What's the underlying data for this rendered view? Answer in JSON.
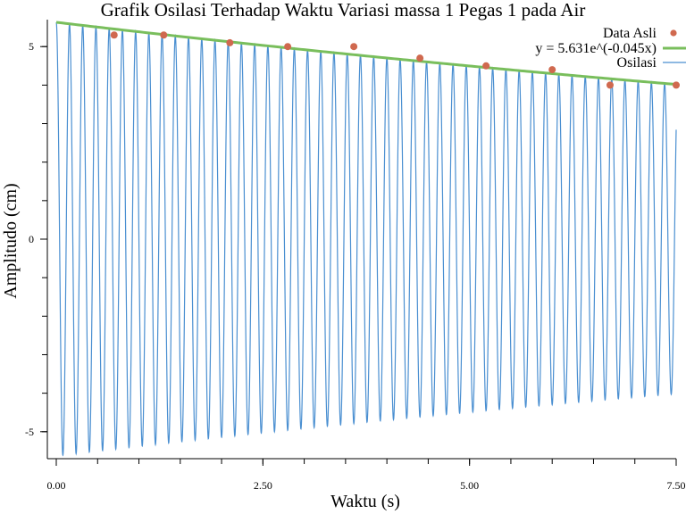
{
  "chart_data": {
    "type": "line",
    "title": "Grafik Osilasi Terhadap Waktu Variasi massa 1 Pegas 1 pada Air",
    "xlabel": "Waktu (s)",
    "ylabel": "Amplitudo (cm)",
    "xlim": [
      0,
      7.5
    ],
    "ylim": [
      -5.7,
      5.7
    ],
    "xticks": [
      {
        "value": 0,
        "label": "0.00"
      },
      {
        "value": 2.5,
        "label": "2.50"
      },
      {
        "value": 5.0,
        "label": "5.00"
      },
      {
        "value": 7.5,
        "label": "7.50"
      }
    ],
    "yticks": [
      {
        "value": 5,
        "label": "5"
      },
      {
        "value": 0,
        "label": "0"
      },
      {
        "value": -5,
        "label": "-5"
      }
    ],
    "x_minor_step": 0.5,
    "y_minor_step": 1,
    "grid": false,
    "legend_position": "top-right",
    "series": [
      {
        "name": "Data Asli",
        "kind": "scatter",
        "color": "#d0694f",
        "x": [
          0.7,
          1.3,
          2.1,
          2.8,
          3.6,
          4.4,
          5.2,
          6.0,
          6.7,
          7.5
        ],
        "y": [
          5.3,
          5.3,
          5.1,
          5.0,
          5.0,
          4.7,
          4.5,
          4.4,
          4.0,
          4.0
        ]
      },
      {
        "name": "y = 5.631e^(-0.045x)",
        "kind": "fit",
        "color": "#79be5c",
        "amplitude": 5.631,
        "decay": 0.045,
        "x": [
          0,
          7.5
        ]
      },
      {
        "name": "Osilasi",
        "kind": "oscillation",
        "color": "#4a8fd1",
        "amplitude": 5.631,
        "decay": 0.045,
        "period": 0.16,
        "x": [
          0,
          7.5
        ]
      }
    ]
  }
}
